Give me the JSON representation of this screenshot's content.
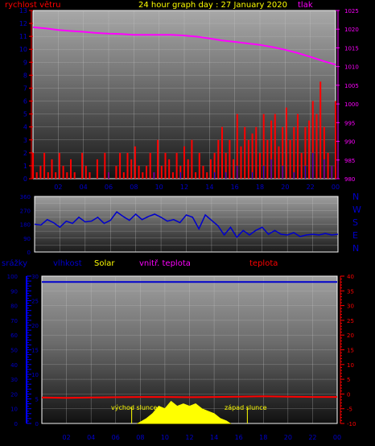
{
  "header": {
    "wind_label": "rychlost větru",
    "title": "24 hour graph day : 27 January 2020",
    "pressure_label": "tlak"
  },
  "colors": {
    "wind": "#ff0000",
    "gust": "#0000ff",
    "pressure": "#ff00ff",
    "direction": "#0000cc",
    "rain": "#0000ff",
    "humidity": "#0000cc",
    "solar": "#ffff00",
    "indoor_temp": "#ff00ff",
    "temp": "#ff0000",
    "title": "#ffff00",
    "tick_text": "#0000cc"
  },
  "compass": [
    "N",
    "W",
    "S",
    "E",
    "N"
  ],
  "bottom_labels": {
    "rain": "srážky",
    "humidity": "vlhkost",
    "solar": "Solar",
    "indoor_temp": "vnitř. teplota",
    "temp": "teplota",
    "sunrise": "východ slunce",
    "sunset": "západ slunce"
  },
  "chart_data": [
    {
      "id": "wind_pressure",
      "type": "line",
      "x_ticks": [
        "02",
        "04",
        "06",
        "08",
        "10",
        "12",
        "14",
        "16",
        "18",
        "20",
        "22",
        "00"
      ],
      "x_range": [
        0,
        24
      ],
      "left_axis": {
        "ylim": [
          0,
          13
        ],
        "ticks": [
          0,
          1,
          2,
          3,
          4,
          5,
          6,
          7,
          8,
          9,
          10,
          11,
          12,
          13
        ]
      },
      "right_axis": {
        "ylim": [
          980,
          1025
        ],
        "ticks": [
          980,
          985,
          990,
          995,
          1000,
          1005,
          1010,
          1015,
          1020,
          1025
        ]
      },
      "series": [
        {
          "key": "pressure",
          "axis": "right",
          "x": [
            0,
            1,
            2,
            3,
            4,
            5,
            6,
            7,
            8,
            9,
            10,
            11,
            12,
            13,
            14,
            15,
            16,
            17,
            18,
            19,
            20,
            21,
            22,
            23,
            24
          ],
          "y": [
            1020.5,
            1020.2,
            1019.8,
            1019.5,
            1019.3,
            1019.0,
            1018.8,
            1018.7,
            1018.5,
            1018.5,
            1018.5,
            1018.5,
            1018.3,
            1018.0,
            1017.5,
            1017.0,
            1016.6,
            1016.2,
            1015.8,
            1015.2,
            1014.5,
            1013.6,
            1012.6,
            1011.5,
            1010.5
          ]
        },
        {
          "key": "wind",
          "axis": "left",
          "style": "spikes",
          "x": [
            0.0,
            0.3,
            0.6,
            0.9,
            1.2,
            1.5,
            1.8,
            2.1,
            2.4,
            2.7,
            3.0,
            3.3,
            3.6,
            3.9,
            4.2,
            4.5,
            4.8,
            5.1,
            5.4,
            5.7,
            6.0,
            6.3,
            6.6,
            6.9,
            7.2,
            7.5,
            7.8,
            8.1,
            8.4,
            8.7,
            9.0,
            9.3,
            9.6,
            9.9,
            10.2,
            10.5,
            10.8,
            11.1,
            11.4,
            11.7,
            12.0,
            12.3,
            12.6,
            12.9,
            13.2,
            13.5,
            13.8,
            14.1,
            14.4,
            14.7,
            15.0,
            15.3,
            15.6,
            15.9,
            16.2,
            16.5,
            16.8,
            17.1,
            17.4,
            17.7,
            18.0,
            18.3,
            18.6,
            18.9,
            19.2,
            19.5,
            19.8,
            20.1,
            20.4,
            20.7,
            21.0,
            21.3,
            21.6,
            21.9,
            22.2,
            22.5,
            22.8,
            23.1,
            23.4,
            23.7,
            24.0
          ],
          "y": [
            2,
            0.5,
            1,
            2,
            0.5,
            1.5,
            0.5,
            2,
            1,
            0.5,
            1.5,
            0.5,
            0,
            2,
            1,
            0.5,
            0,
            1.5,
            0,
            2,
            0.5,
            0,
            1,
            2,
            0.5,
            2,
            1.5,
            2.5,
            1,
            0.5,
            1,
            2,
            0.5,
            3,
            1,
            2,
            1.5,
            0.5,
            2,
            1,
            2.5,
            1.5,
            3,
            0.5,
            2,
            1,
            0.5,
            1.5,
            2,
            3,
            4,
            2,
            3,
            1.5,
            5,
            2.5,
            4,
            3,
            3.5,
            4,
            2,
            5,
            3,
            4.5,
            5,
            2.5,
            4,
            5.5,
            3,
            4,
            5,
            2,
            4,
            4.5,
            6,
            5,
            7.5,
            4,
            2,
            1,
            6
          ]
        },
        {
          "key": "gust",
          "axis": "left",
          "style": "spikes",
          "x": [
            6.0,
            9.6,
            11.7,
            14.4,
            15.3,
            16.2,
            17.4,
            18.3,
            18.9,
            19.8,
            20.7,
            21.6,
            22.2,
            23.1,
            23.7
          ],
          "y": [
            0.5,
            0.5,
            0.5,
            0.5,
            0.5,
            1,
            0.5,
            1,
            1.5,
            1,
            0.5,
            1,
            2,
            1.5,
            1
          ]
        }
      ]
    },
    {
      "id": "wind_direction",
      "type": "line",
      "x_range": [
        0,
        24
      ],
      "ylim": [
        0,
        360
      ],
      "ticks": [
        0,
        45,
        90,
        135,
        180,
        225,
        270,
        315,
        360
      ],
      "series": [
        {
          "key": "direction",
          "x": [
            0.0,
            0.5,
            1.0,
            1.5,
            2.0,
            2.5,
            3.0,
            3.5,
            4.0,
            4.5,
            5.0,
            5.5,
            6.0,
            6.5,
            7.0,
            7.5,
            8.0,
            8.5,
            9.0,
            9.5,
            10.0,
            10.5,
            11.0,
            11.5,
            12.0,
            12.5,
            13.0,
            13.5,
            14.0,
            14.5,
            15.0,
            15.5,
            16.0,
            16.5,
            17.0,
            17.5,
            18.0,
            18.5,
            19.0,
            19.5,
            20.0,
            20.5,
            21.0,
            21.5,
            22.0,
            22.5,
            23.0,
            23.5,
            24.0
          ],
          "y": [
            180,
            175,
            210,
            190,
            160,
            200,
            185,
            225,
            195,
            200,
            225,
            185,
            205,
            260,
            230,
            205,
            245,
            210,
            230,
            245,
            225,
            200,
            210,
            190,
            240,
            225,
            150,
            240,
            205,
            170,
            110,
            160,
            95,
            140,
            110,
            140,
            160,
            115,
            140,
            115,
            110,
            125,
            100,
            110,
            115,
            110,
            120,
            110,
            115
          ]
        }
      ]
    },
    {
      "id": "rain_humidity_solar_temp",
      "type": "line",
      "x_ticks": [
        "02",
        "04",
        "06",
        "08",
        "10",
        "12",
        "14",
        "16",
        "18",
        "20",
        "22",
        "00"
      ],
      "x_range": [
        0,
        24
      ],
      "left_axis": {
        "ylim": [
          0,
          100
        ],
        "ticks": [
          0,
          10,
          20,
          30,
          40,
          50,
          60,
          70,
          80,
          90,
          100
        ]
      },
      "inner_axis": {
        "ylim": [
          0,
          30
        ],
        "ticks": [
          0,
          5,
          10,
          15,
          20,
          25,
          30
        ]
      },
      "right_axis": {
        "ylim": [
          -10,
          40
        ],
        "ticks": [
          -10,
          -5,
          0,
          5,
          10,
          15,
          20,
          25,
          30,
          35,
          40
        ]
      },
      "sunrise": 7.3,
      "sunset": 16.7,
      "series": [
        {
          "key": "humidity",
          "axis": "left",
          "x": [
            0,
            24
          ],
          "y": [
            96,
            96
          ]
        },
        {
          "key": "temp",
          "axis": "right",
          "x": [
            0,
            2,
            4,
            6,
            8,
            10,
            12,
            14,
            16,
            18,
            20,
            22,
            24
          ],
          "y": [
            -1.2,
            -1.3,
            -1.2,
            -1.1,
            -1.0,
            -1.0,
            -1.1,
            -1.0,
            -0.9,
            -0.8,
            -0.9,
            -1.0,
            -1.0
          ]
        },
        {
          "key": "solar",
          "axis": "inner",
          "x": [
            7.8,
            8.5,
            9.0,
            9.5,
            10.0,
            10.5,
            11.0,
            11.5,
            12.0,
            12.5,
            13.0,
            13.5,
            14.0,
            14.5,
            15.0,
            15.3
          ],
          "y": [
            0,
            1,
            2,
            3.5,
            3,
            4.5,
            3.5,
            4,
            3.5,
            4,
            3,
            2.5,
            2,
            1,
            0.5,
            0
          ]
        }
      ]
    }
  ]
}
